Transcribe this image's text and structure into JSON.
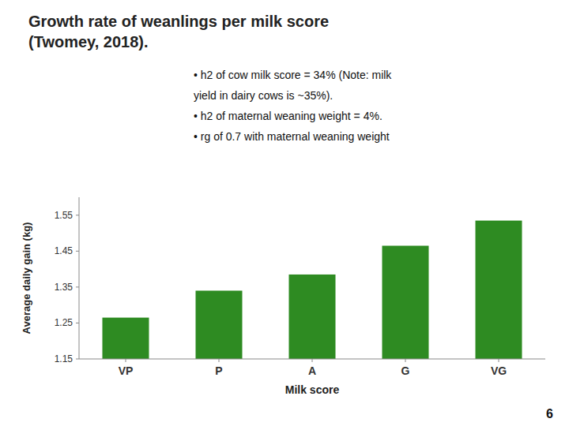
{
  "chart_data": {
    "type": "bar",
    "title": "Growth rate of weanlings per milk score",
    "subtitle": "(Twomey, 2018).",
    "annotations": [
      "• h2 of cow milk score = 34% (Note: milk",
      "yield in dairy cows is ~35%).",
      "• h2 of maternal weaning weight = 4%.",
      "• rg of 0.7 with maternal weaning weight"
    ],
    "page_number": "6",
    "categories": [
      "VP",
      "P",
      "A",
      "G",
      "VG"
    ],
    "values": [
      1.265,
      1.34,
      1.385,
      1.465,
      1.535
    ],
    "color": "#2e8b22",
    "xlabel": "Milk score",
    "ylabel": "Average daily gain (kg)",
    "ylim": [
      1.15,
      1.6
    ],
    "yticks": [
      1.15,
      1.25,
      1.35,
      1.45,
      1.55
    ],
    "grid": false
  }
}
